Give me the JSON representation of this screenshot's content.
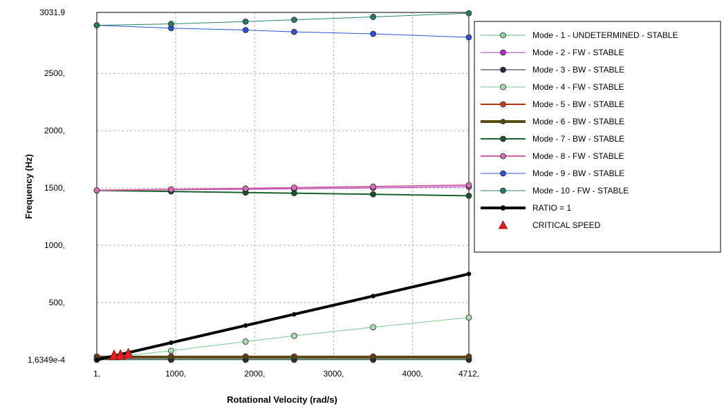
{
  "chart_data": {
    "type": "line",
    "xlabel": "Rotational Velocity (rad/s)",
    "ylabel": "Frequency (Hz)",
    "xlim": [
      1,
      4712
    ],
    "ylim": [
      0.00016349,
      3031.9
    ],
    "grid": true,
    "legend_position": "right",
    "x_ticks": [
      {
        "value": 1,
        "label": "1,"
      },
      {
        "value": 1000,
        "label": "1000,"
      },
      {
        "value": 2000,
        "label": "2000,"
      },
      {
        "value": 3000,
        "label": "3000,"
      },
      {
        "value": 4000,
        "label": "4000,"
      },
      {
        "value": 4712,
        "label": "4712,"
      }
    ],
    "y_ticks": [
      {
        "value": 0.00016349,
        "label": "1,6349e-4"
      },
      {
        "value": 500,
        "label": "500,"
      },
      {
        "value": 1000,
        "label": "1000,"
      },
      {
        "value": 1500,
        "label": "1500,"
      },
      {
        "value": 2000,
        "label": "2000,"
      },
      {
        "value": 2500,
        "label": "2500,"
      },
      {
        "value": 3031.9,
        "label": "3031,9"
      }
    ],
    "x": [
      1,
      942,
      1885,
      2500,
      3500,
      4712
    ],
    "series": [
      {
        "name": "Mode - 1  - UNDETERMINED  - STABLE",
        "color": "#5cb87a",
        "fill": "#8fd0a0",
        "width": 1,
        "values": [
          0,
          0,
          0,
          0,
          0,
          0
        ]
      },
      {
        "name": "Mode - 2  - FW  - STABLE",
        "color": "#b030c0",
        "fill": "#b030c0",
        "width": 1,
        "values": [
          1480,
          1484,
          1488,
          1492,
          1500,
          1510
        ]
      },
      {
        "name": "Mode - 3  - BW  - STABLE",
        "color": "#1c1c3a",
        "fill": "#2a2a40",
        "width": 1,
        "values": [
          6,
          6,
          6,
          6,
          6,
          6
        ]
      },
      {
        "name": "Mode - 4  - FW  - STABLE",
        "color": "#7ac98c",
        "fill": "#a8dcb4",
        "width": 1,
        "values": [
          10,
          80,
          160,
          210,
          285,
          370
        ]
      },
      {
        "name": "Mode - 5  - BW  - STABLE",
        "color": "#b03010",
        "fill": "#c04020",
        "width": 2,
        "values": [
          30,
          30,
          30,
          30,
          30,
          30
        ]
      },
      {
        "name": "Mode - 6  - BW  - STABLE",
        "color": "#5a4a10",
        "fill": "#5a4a10",
        "width": 4,
        "values": [
          25,
          25,
          25,
          25,
          25,
          25
        ]
      },
      {
        "name": "Mode - 7  - BW  - STABLE",
        "color": "#1a6030",
        "fill": "#1a5030",
        "width": 2,
        "values": [
          1478,
          1470,
          1460,
          1455,
          1445,
          1432
        ]
      },
      {
        "name": "Mode - 8  - FW  - STABLE",
        "color": "#d060a0",
        "fill": "#d070b0",
        "width": 2,
        "values": [
          1480,
          1488,
          1496,
          1503,
          1512,
          1525
        ]
      },
      {
        "name": "Mode - 9  - BW  - STABLE",
        "color": "#3050d0",
        "fill": "#3050d0",
        "width": 1,
        "values": [
          2920,
          2895,
          2878,
          2862,
          2845,
          2815
        ]
      },
      {
        "name": "Mode - 10  - FW  - STABLE",
        "color": "#2a8070",
        "fill": "#2a7a6a",
        "width": 1,
        "values": [
          2920,
          2932,
          2952,
          2968,
          2993,
          3025
        ]
      },
      {
        "name": "RATIO = 1",
        "color": "#000000",
        "fill": "#000000",
        "width": 4,
        "values": [
          0,
          150,
          300,
          398,
          557,
          750
        ]
      }
    ],
    "critical_speed": {
      "name": "CRITICAL SPEED",
      "color": "#e02020",
      "points": [
        {
          "x": 220,
          "y": 25
        },
        {
          "x": 300,
          "y": 28
        },
        {
          "x": 400,
          "y": 40
        }
      ]
    }
  }
}
